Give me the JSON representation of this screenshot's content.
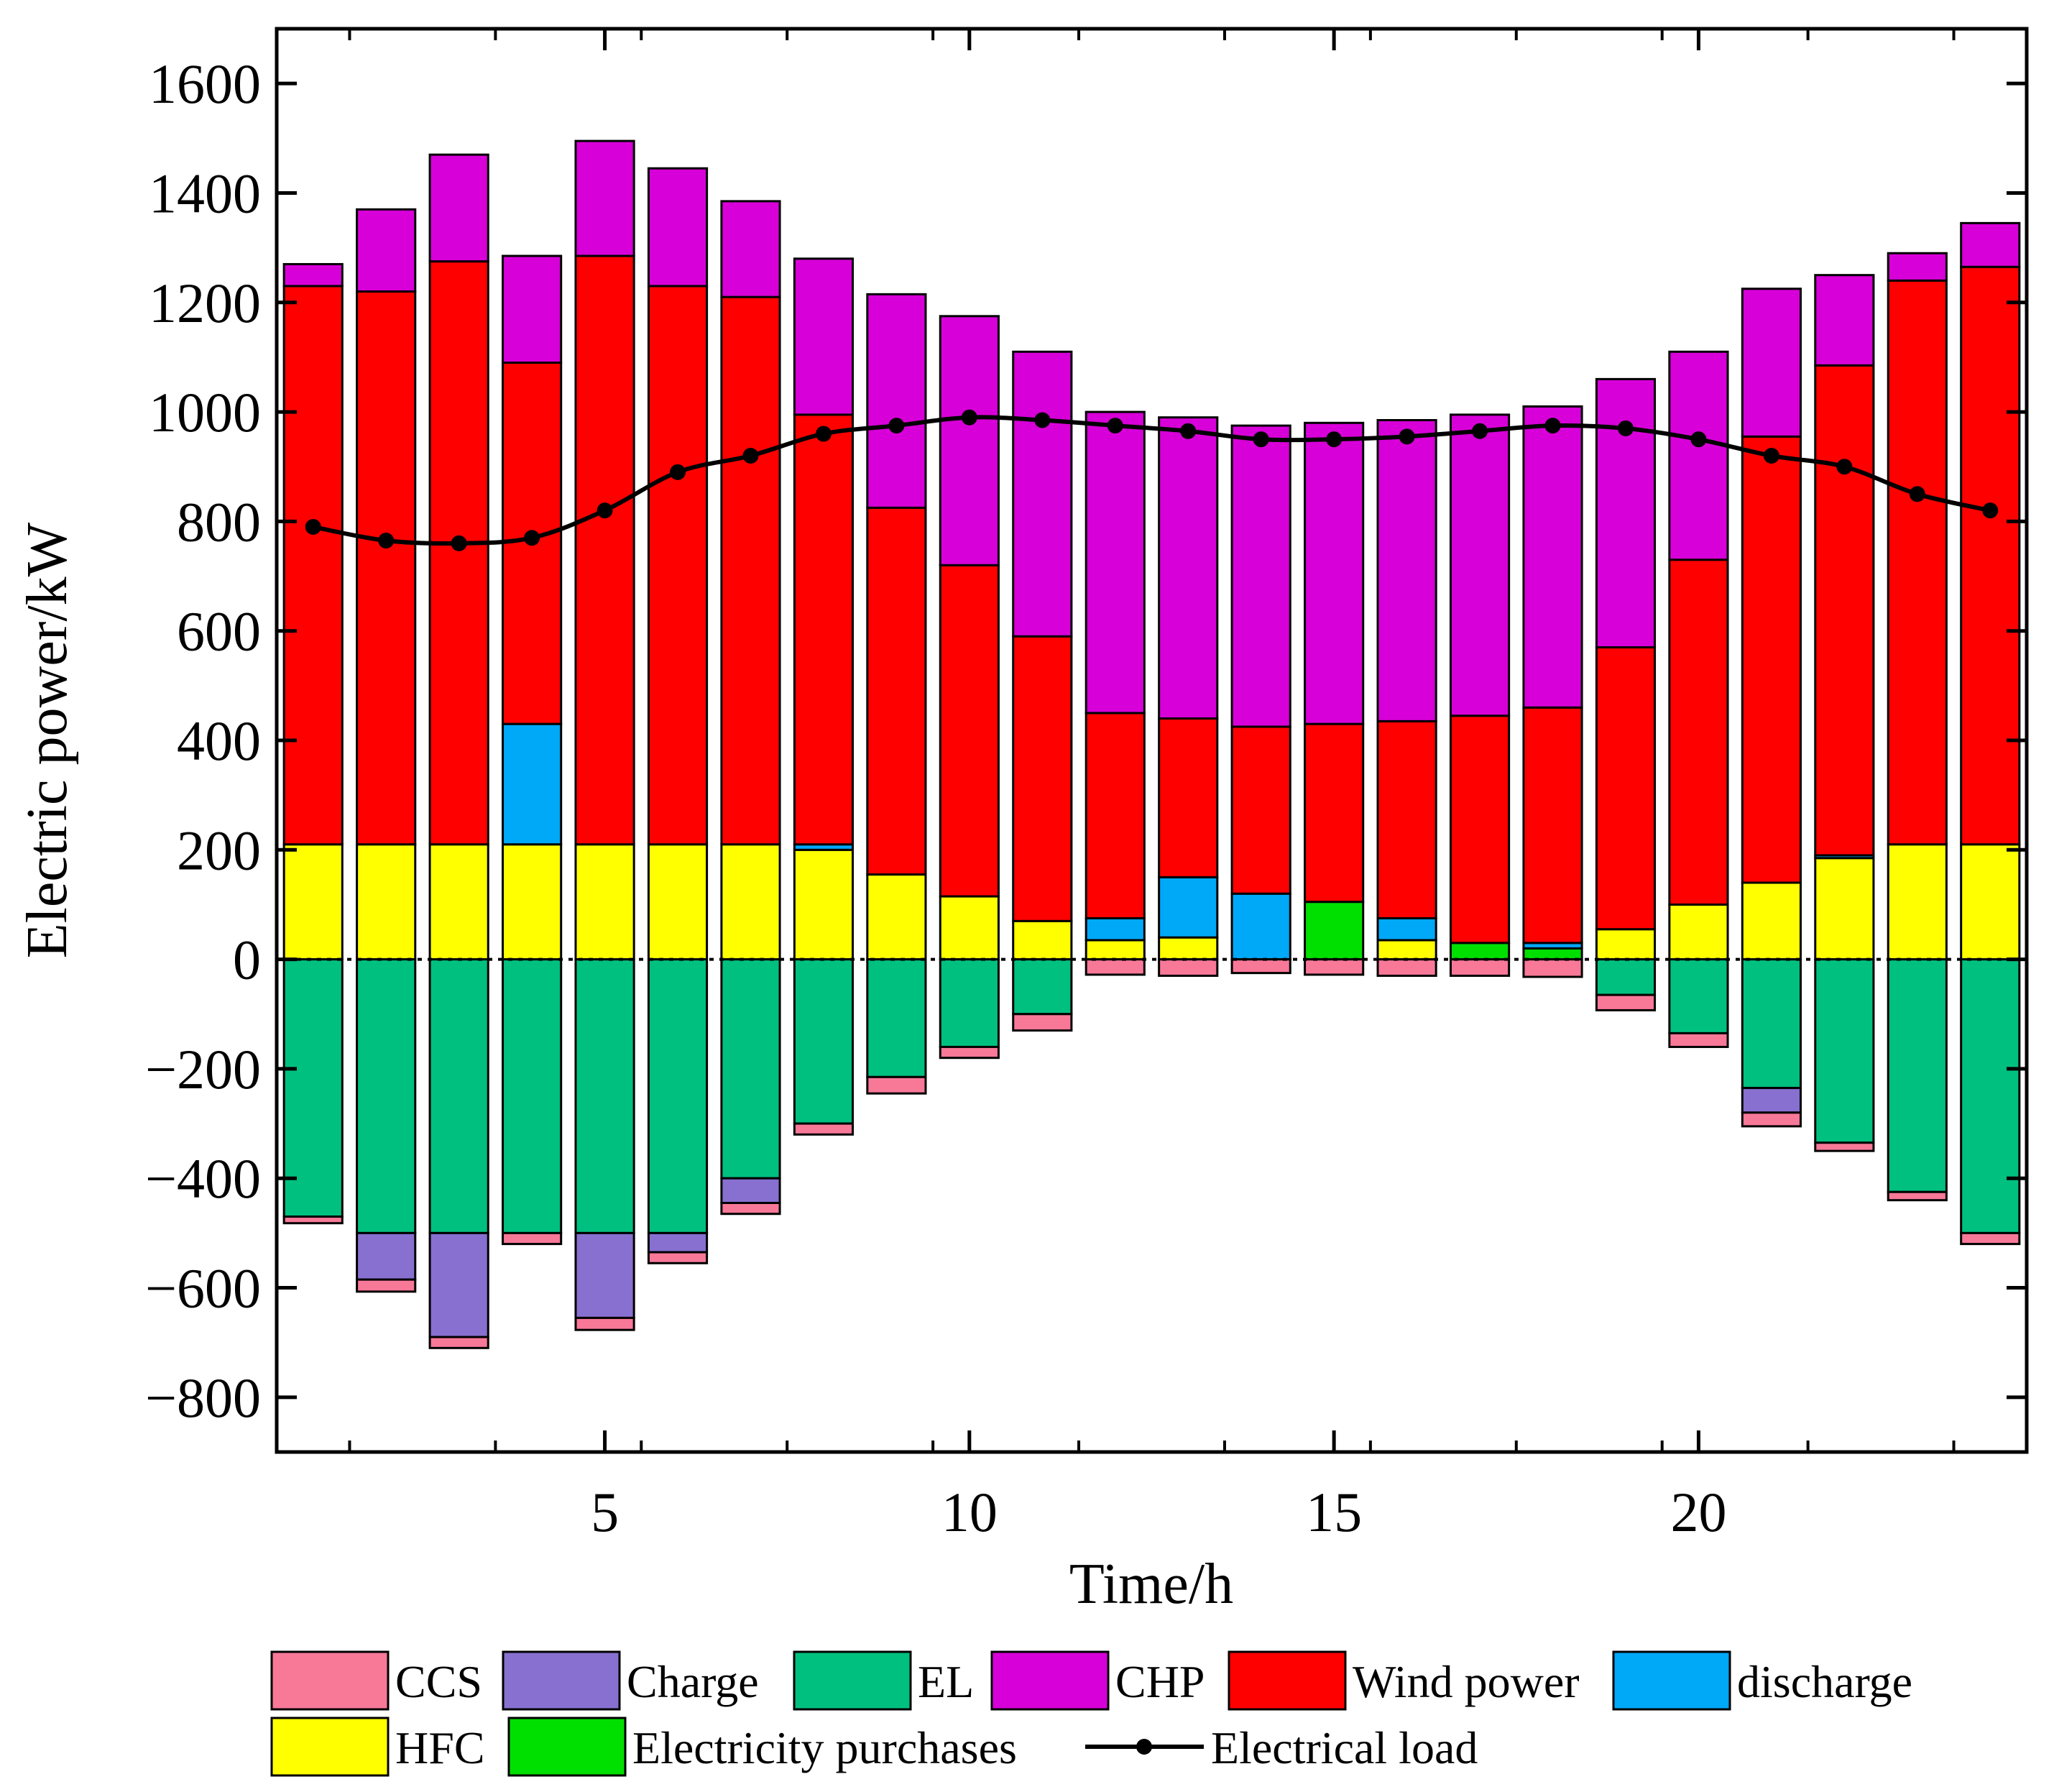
{
  "chart_data": {
    "type": "bar",
    "stacked": true,
    "title": "",
    "xlabel": "Time/h",
    "ylabel": "Electric power/kW",
    "xlim": [
      0.5,
      24.5
    ],
    "ylim": [
      -900,
      1700
    ],
    "x_ticks": [
      5,
      10,
      15,
      20
    ],
    "y_ticks": [
      -800,
      -600,
      -400,
      -200,
      0,
      200,
      400,
      600,
      800,
      1000,
      1200,
      1400,
      1600
    ],
    "y_tick_labels": [
      "−800",
      "−600",
      "−400",
      "−200",
      "0",
      "200",
      "400",
      "600",
      "800",
      "1000",
      "1200",
      "1400",
      "1600"
    ],
    "hours": [
      1,
      2,
      3,
      4,
      5,
      6,
      7,
      8,
      9,
      10,
      11,
      12,
      13,
      14,
      15,
      16,
      17,
      18,
      19,
      20,
      21,
      22,
      23,
      24
    ],
    "positive_series": [
      {
        "name": "HFC",
        "color": "#FFFF00",
        "values": [
          210,
          210,
          210,
          210,
          210,
          210,
          210,
          200,
          155,
          115,
          70,
          35,
          40,
          0,
          0,
          35,
          0,
          0,
          55,
          100,
          140,
          185,
          210,
          210
        ]
      },
      {
        "name": "Electricity purchases",
        "color": "#00E000",
        "values": [
          0,
          0,
          0,
          0,
          0,
          0,
          0,
          0,
          0,
          0,
          0,
          0,
          0,
          0,
          105,
          0,
          30,
          20,
          0,
          0,
          0,
          0,
          0,
          0
        ]
      },
      {
        "name": "discharge",
        "color": "#00A8F8",
        "values": [
          0,
          0,
          0,
          220,
          0,
          0,
          0,
          10,
          0,
          0,
          0,
          40,
          110,
          120,
          0,
          40,
          0,
          10,
          0,
          0,
          0,
          5,
          0,
          0
        ]
      },
      {
        "name": "Wind power",
        "color": "#FF0000",
        "values": [
          1020,
          1010,
          1065,
          660,
          1075,
          1020,
          1000,
          785,
          670,
          605,
          520,
          375,
          290,
          305,
          325,
          360,
          415,
          430,
          515,
          630,
          815,
          895,
          1030,
          1055
        ]
      },
      {
        "name": "CHP",
        "color": "#D800D8",
        "values": [
          40,
          150,
          195,
          195,
          210,
          215,
          175,
          285,
          390,
          455,
          520,
          550,
          550,
          550,
          550,
          550,
          550,
          550,
          490,
          380,
          270,
          165,
          50,
          80
        ]
      }
    ],
    "negative_series": [
      {
        "name": "EL",
        "color": "#00C080",
        "values": [
          -470,
          -500,
          -500,
          -500,
          -500,
          -500,
          -400,
          -300,
          -215,
          -160,
          -100,
          0,
          0,
          0,
          0,
          0,
          0,
          0,
          -65,
          -135,
          -235,
          -335,
          -425,
          -500
        ]
      },
      {
        "name": "Charge",
        "color": "#8870D0",
        "values": [
          0,
          -85,
          -190,
          0,
          -155,
          -35,
          -45,
          0,
          0,
          0,
          0,
          0,
          0,
          0,
          0,
          0,
          0,
          0,
          0,
          0,
          -45,
          0,
          0,
          0
        ]
      },
      {
        "name": "CCS",
        "color": "#F87898",
        "values": [
          -12,
          -22,
          -20,
          -20,
          -22,
          -20,
          -20,
          -20,
          -30,
          -20,
          -30,
          -28,
          -30,
          -25,
          -28,
          -30,
          -30,
          -32,
          -28,
          -25,
          -25,
          -15,
          -15,
          -20
        ]
      }
    ],
    "load_series": {
      "name": "Electrical load",
      "color": "#000000",
      "values": [
        790,
        765,
        760,
        770,
        820,
        890,
        920,
        960,
        975,
        990,
        985,
        975,
        965,
        950,
        950,
        955,
        965,
        975,
        970,
        950,
        920,
        900,
        850,
        820
      ]
    },
    "legend": {
      "position": "bottom",
      "items": [
        {
          "label": "CCS",
          "color": "#F87898",
          "kind": "box"
        },
        {
          "label": "Charge",
          "color": "#8870D0",
          "kind": "box"
        },
        {
          "label": "EL",
          "color": "#00C080",
          "kind": "box"
        },
        {
          "label": "CHP",
          "color": "#D800D8",
          "kind": "box"
        },
        {
          "label": "Wind power",
          "color": "#FF0000",
          "kind": "box"
        },
        {
          "label": "discharge",
          "color": "#00A8F8",
          "kind": "box"
        },
        {
          "label": "HFC",
          "color": "#FFFF00",
          "kind": "box"
        },
        {
          "label": "Electricity purchases",
          "color": "#00E000",
          "kind": "box"
        },
        {
          "label": "Electrical load",
          "color": "#000000",
          "kind": "line"
        }
      ]
    }
  }
}
